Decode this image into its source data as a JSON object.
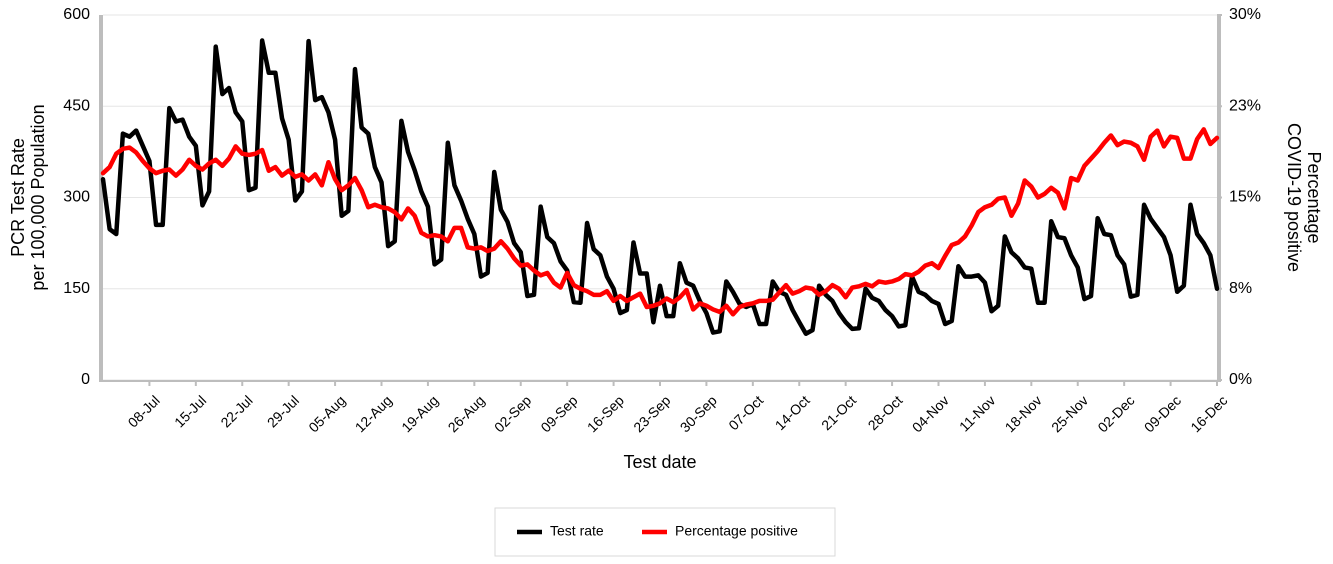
{
  "chart_data": {
    "type": "line",
    "xlabel": "Test date",
    "ylabel": [
      "PCR Test Rate",
      "per 100,000 Population"
    ],
    "y2label": [
      "Percentage",
      "COVID-19 positive"
    ],
    "categories": [
      null,
      null,
      null,
      null,
      null,
      null,
      null,
      "08-Jul",
      null,
      null,
      null,
      null,
      null,
      null,
      "15-Jul",
      null,
      null,
      null,
      null,
      null,
      null,
      "22-Jul",
      null,
      null,
      null,
      null,
      null,
      null,
      "29-Jul",
      null,
      null,
      null,
      null,
      null,
      null,
      "05-Aug",
      null,
      null,
      null,
      null,
      null,
      null,
      "12-Aug",
      null,
      null,
      null,
      null,
      null,
      null,
      "19-Aug",
      null,
      null,
      null,
      null,
      null,
      null,
      "26-Aug",
      null,
      null,
      null,
      null,
      null,
      null,
      "02-Sep",
      null,
      null,
      null,
      null,
      null,
      null,
      "09-Sep",
      null,
      null,
      null,
      null,
      null,
      null,
      "16-Sep",
      null,
      null,
      null,
      null,
      null,
      null,
      "23-Sep",
      null,
      null,
      null,
      null,
      null,
      null,
      "30-Sep",
      null,
      null,
      null,
      null,
      null,
      null,
      "07-Oct",
      null,
      null,
      null,
      null,
      null,
      null,
      "14-Oct",
      null,
      null,
      null,
      null,
      null,
      null,
      "21-Oct",
      null,
      null,
      null,
      null,
      null,
      null,
      "28-Oct",
      null,
      null,
      null,
      null,
      null,
      null,
      "04-Nov",
      null,
      null,
      null,
      null,
      null,
      null,
      "11-Nov",
      null,
      null,
      null,
      null,
      null,
      null,
      "18-Nov",
      null,
      null,
      null,
      null,
      null,
      null,
      "25-Nov",
      null,
      null,
      null,
      null,
      null,
      null,
      "02-Dec",
      null,
      null,
      null,
      null,
      null,
      null,
      "09-Dec",
      null,
      null,
      null,
      null,
      null,
      null,
      "16-Dec"
    ],
    "series": [
      {
        "name": "Test rate",
        "color": "#000000",
        "axis": "y",
        "values": [
          330,
          248,
          240,
          405,
          400,
          410,
          385,
          360,
          255,
          255,
          447,
          425,
          428,
          400,
          385,
          287,
          310,
          548,
          470,
          480,
          440,
          425,
          312,
          316,
          558,
          505,
          505,
          430,
          395,
          295,
          310,
          557,
          460,
          465,
          440,
          395,
          270,
          278,
          511,
          415,
          405,
          350,
          325,
          220,
          228,
          426,
          375,
          345,
          310,
          285,
          190,
          198,
          390,
          320,
          295,
          265,
          240,
          170,
          176,
          342,
          280,
          260,
          225,
          210,
          138,
          140,
          285,
          235,
          225,
          195,
          180,
          128,
          127,
          258,
          215,
          205,
          170,
          150,
          110,
          115,
          226,
          175,
          175,
          95,
          155,
          105,
          105,
          192,
          160,
          155,
          130,
          110,
          78,
          80,
          162,
          145,
          125,
          120,
          125,
          92,
          92,
          162,
          145,
          140,
          115,
          95,
          76,
          82,
          155,
          140,
          130,
          110,
          95,
          84,
          85,
          150,
          135,
          130,
          115,
          105,
          88,
          90,
          170,
          145,
          140,
          130,
          125,
          92,
          97,
          187,
          170,
          170,
          172,
          160,
          113,
          122,
          236,
          210,
          200,
          185,
          183,
          127,
          127,
          261,
          235,
          233,
          205,
          185,
          133,
          138,
          266,
          240,
          238,
          205,
          190,
          137,
          140,
          288,
          265,
          250,
          235,
          205,
          145,
          155,
          288,
          240,
          225,
          205,
          150
        ]
      },
      {
        "name": "Percentage positive",
        "color": "#ff0000",
        "axis": "y2",
        "values": [
          17.0,
          17.5,
          18.6,
          19.0,
          19.1,
          18.7,
          18.0,
          17.4,
          17.0,
          17.2,
          17.3,
          16.8,
          17.3,
          18.1,
          17.6,
          17.3,
          17.8,
          18.1,
          17.6,
          18.2,
          19.2,
          18.6,
          18.5,
          18.6,
          18.9,
          17.2,
          17.5,
          16.8,
          17.2,
          16.7,
          16.9,
          16.4,
          16.9,
          16.0,
          17.9,
          16.5,
          15.6,
          16.0,
          16.6,
          15.6,
          14.2,
          14.4,
          14.2,
          14.1,
          13.8,
          13.2,
          14.1,
          13.5,
          12.1,
          11.8,
          11.9,
          11.8,
          11.4,
          12.5,
          12.5,
          10.9,
          10.8,
          10.9,
          10.6,
          10.8,
          11.4,
          10.8,
          10.0,
          9.4,
          9.5,
          9.0,
          8.6,
          8.8,
          8.0,
          7.6,
          8.8,
          7.8,
          7.5,
          7.3,
          7.0,
          7.0,
          7.3,
          6.5,
          6.9,
          6.5,
          6.8,
          7.1,
          6.0,
          6.1,
          6.3,
          6.7,
          6.4,
          6.8,
          7.4,
          5.8,
          6.3,
          6.1,
          5.8,
          5.6,
          6.1,
          5.4,
          6.0,
          6.2,
          6.3,
          6.5,
          6.5,
          6.6,
          7.2,
          7.8,
          7.1,
          7.3,
          7.6,
          7.5,
          7.0,
          7.3,
          7.8,
          7.5,
          6.8,
          7.6,
          7.7,
          7.9,
          7.7,
          8.1,
          8.0,
          8.1,
          8.3,
          8.7,
          8.6,
          8.9,
          9.4,
          9.6,
          9.2,
          10.2,
          11.1,
          11.3,
          11.8,
          12.7,
          13.8,
          14.2,
          14.4,
          14.9,
          15.0,
          13.5,
          14.5,
          16.4,
          15.9,
          15.0,
          15.3,
          15.8,
          15.4,
          14.1,
          16.6,
          16.4,
          17.6,
          18.2,
          18.8,
          19.5,
          20.1,
          19.3,
          19.6,
          19.5,
          19.2,
          18.1,
          20.0,
          20.5,
          19.2,
          20.0,
          19.9,
          18.2,
          18.2,
          19.8,
          20.6,
          19.4,
          19.9
        ]
      }
    ],
    "ylim": [
      0,
      600
    ],
    "yticks": [
      0,
      150,
      300,
      450,
      600
    ],
    "y2lim": [
      0,
      30
    ],
    "y2ticks": [
      {
        "value": 0,
        "label": "0%"
      },
      {
        "value": 7.5,
        "label": "8%"
      },
      {
        "value": 15,
        "label": "15%"
      },
      {
        "value": 22.5,
        "label": "23%"
      },
      {
        "value": 30,
        "label": "30%"
      }
    ],
    "grid": true,
    "legend": "bottom"
  }
}
